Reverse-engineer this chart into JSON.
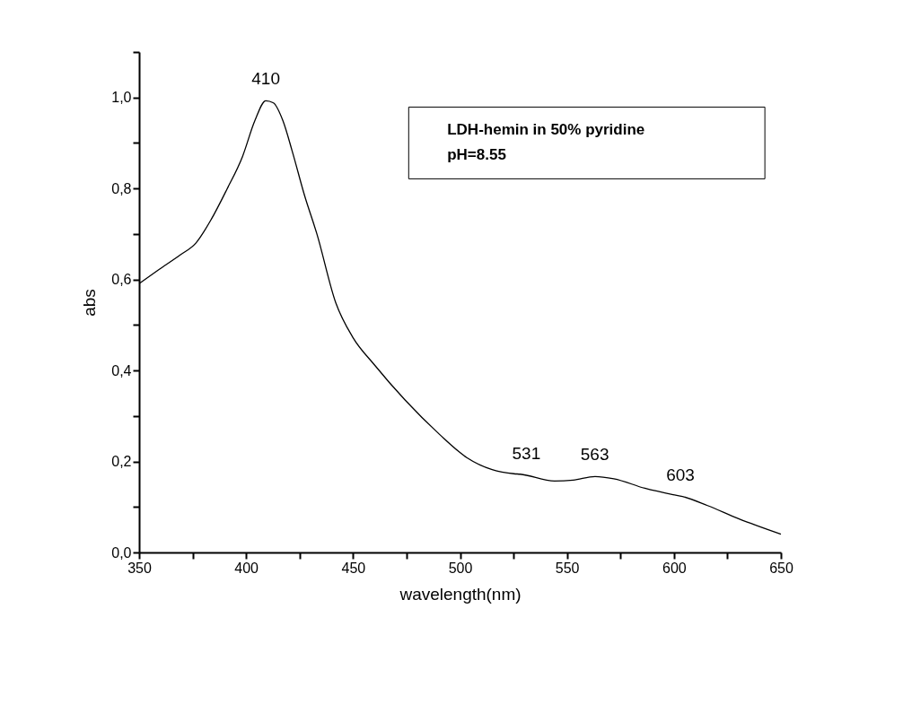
{
  "chart_data": {
    "type": "line",
    "xlabel": "wavelength(nm)",
    "ylabel": "abs",
    "x": [
      350,
      359,
      369.2,
      376.5,
      383.7,
      391,
      398.3,
      404.1,
      409.2,
      412.8,
      417.2,
      421.5,
      427.3,
      433.1,
      441.9,
      450,
      459.7,
      474.3,
      490.3,
      503.3,
      515,
      525.2,
      528.1,
      544.2,
      552.9,
      563.1,
      571.9,
      586.4,
      599.6,
      604,
      615.7,
      630.2,
      650
    ],
    "series": [
      {
        "color": "#000000",
        "values": [
          0.591,
          0.621,
          0.654,
          0.68,
          0.732,
          0.798,
          0.87,
          0.949,
          0.993,
          0.988,
          0.949,
          0.883,
          0.785,
          0.7,
          0.549,
          0.472,
          0.414,
          0.335,
          0.26,
          0.208,
          0.182,
          0.173,
          0.172,
          0.157,
          0.159,
          0.167,
          0.162,
          0.141,
          0.127,
          0.123,
          0.103,
          0.074,
          0.04
        ]
      }
    ],
    "xlim": [
      350,
      650
    ],
    "xticks": [
      350,
      {
        "value": 375,
        "label": null
      },
      400,
      {
        "value": 425,
        "label": null
      },
      450,
      {
        "value": 475,
        "label": null
      },
      500,
      {
        "value": 525,
        "label": null
      },
      550,
      {
        "value": 575,
        "label": null
      },
      600,
      {
        "value": 625,
        "label": null
      },
      650
    ],
    "ylim": [
      0,
      1.1
    ],
    "yticks": [
      {
        "value": 0,
        "label": "0,0"
      },
      {
        "value": 0.1,
        "label": null
      },
      {
        "value": 0.2,
        "label": "0,2"
      },
      {
        "value": 0.3,
        "label": null
      },
      {
        "value": 0.4,
        "label": "0,4"
      },
      {
        "value": 0.5,
        "label": null
      },
      {
        "value": 0.6,
        "label": "0,6"
      },
      {
        "value": 0.7,
        "label": null
      },
      {
        "value": 0.8,
        "label": "0,8"
      },
      {
        "value": 0.9,
        "label": null
      },
      {
        "value": 1.0,
        "label": "1,0"
      },
      {
        "value": 1.1,
        "label": null
      }
    ],
    "grid": false,
    "marker": "none",
    "line_style": "solid",
    "annotations": [
      {
        "text": "410",
        "x": 409.2,
        "y": 0.993
      },
      {
        "text": "531",
        "x": 531,
        "y": 0.17
      },
      {
        "text": "563",
        "x": 563,
        "y": 0.167
      },
      {
        "text": "603",
        "x": 603,
        "y": 0.123
      },
      "LDH-hemin in 50% pyridine",
      "pH=8.55"
    ]
  }
}
